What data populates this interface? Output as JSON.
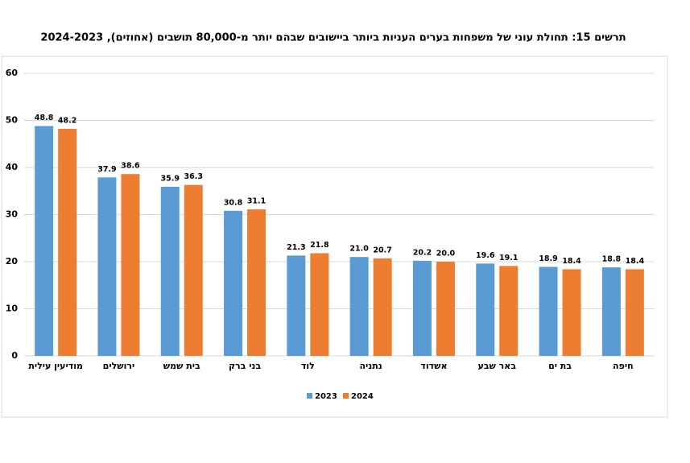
{
  "chart_data": {
    "type": "bar",
    "title": "תרשים 15: תחולת עוני של משפחות בערים העניות ביותר ביישובים שבהם יותר מ-80,000 תושבים (אחוזים), 2024-2023",
    "categories": [
      "מודיעין עילית",
      "ירושלים",
      "בית שמש",
      "בני ברק",
      "לוד",
      "נתניה",
      "אשדוד",
      "באר שבע",
      "בת ים",
      "חיפה"
    ],
    "series": [
      {
        "name": "2023",
        "color": "#5b9bd5",
        "values": [
          48.8,
          37.9,
          35.9,
          30.8,
          21.3,
          21.0,
          20.2,
          19.6,
          18.9,
          18.8
        ],
        "value_labels": [
          "48.8",
          "37.9",
          "35.9",
          "30.8",
          "21.3",
          "21.0",
          "20.2",
          "19.6",
          "18.9",
          "18.8"
        ]
      },
      {
        "name": "2024",
        "color": "#ed7d31",
        "values": [
          48.2,
          38.6,
          36.3,
          31.1,
          21.8,
          20.7,
          20.0,
          19.1,
          18.4,
          18.4
        ],
        "value_labels": [
          "48.2",
          "38.6",
          "36.3",
          "31.1",
          "21.8",
          "20.7",
          "20.0",
          "19.1",
          "18.4",
          "18.4"
        ]
      }
    ],
    "ylim": [
      0,
      60
    ],
    "yticks": [
      0,
      10,
      20,
      30,
      40,
      50,
      60
    ],
    "grid": true,
    "legend": "bottom"
  }
}
